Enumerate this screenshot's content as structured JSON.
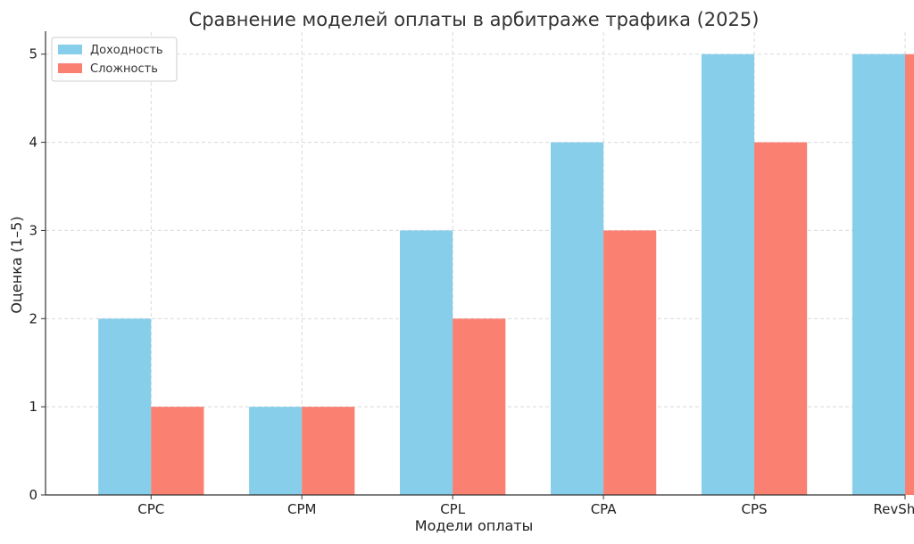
{
  "chart_data": {
    "type": "bar",
    "title": "Сравнение моделей оплаты в арбитраже трафика (2025)",
    "xlabel": "Модели оплаты",
    "ylabel": "Оценка (1–5)",
    "categories": [
      "CPC",
      "CPM",
      "CPL",
      "CPA",
      "CPS",
      "RevShare"
    ],
    "series": [
      {
        "name": "Доходность",
        "values": [
          2,
          1,
          3,
          4,
          5,
          5
        ],
        "color": "#87CEEB"
      },
      {
        "name": "Сложность",
        "values": [
          1,
          1,
          2,
          3,
          4,
          5
        ],
        "color": "#FA8072"
      }
    ],
    "ylim": [
      0,
      5.25
    ],
    "yticks": [
      0,
      1,
      2,
      3,
      4,
      5
    ],
    "grid": true,
    "legend_position": "top-left"
  }
}
